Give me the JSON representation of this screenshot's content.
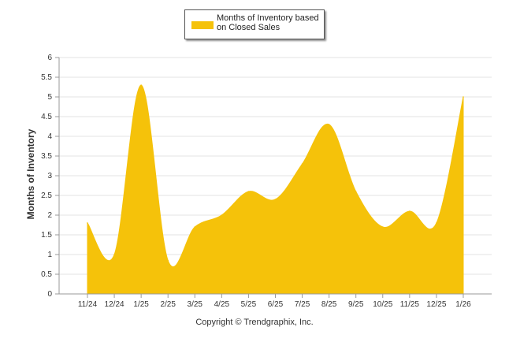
{
  "chart_data": {
    "type": "area",
    "categories": [
      "11/24",
      "12/24",
      "1/25",
      "2/25",
      "3/25",
      "4/25",
      "5/25",
      "6/25",
      "7/25",
      "8/25",
      "9/25",
      "10/25",
      "11/25",
      "12/25",
      "1/26"
    ],
    "series": [
      {
        "name": "Months of Inventory based on Closed Sales",
        "color": "#F5C20A",
        "values": [
          1.8,
          1.0,
          5.3,
          0.85,
          1.7,
          2.0,
          2.6,
          2.4,
          3.3,
          4.3,
          2.6,
          1.7,
          2.1,
          1.8,
          5.0
        ]
      }
    ],
    "yticks": [
      "0",
      "0.5",
      "1",
      "1.5",
      "2",
      "2.5",
      "3",
      "3.5",
      "4",
      "4.5",
      "5",
      "5.5",
      "6"
    ],
    "ylim": [
      0,
      6
    ],
    "ylabel": "Months of Inventory",
    "xlabel": "",
    "grid": true,
    "legend": "top-center"
  },
  "footer": {
    "copyright": "Copyright © Trendgraphix, Inc."
  }
}
